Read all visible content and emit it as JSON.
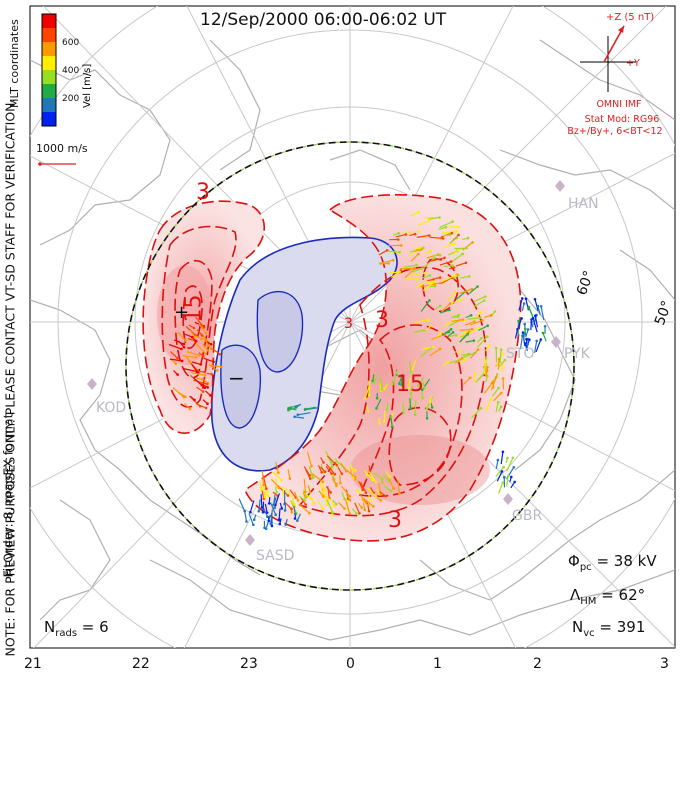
{
  "title": "12/Sep/2000 06:00-06:02 UT",
  "side_text": {
    "line1": "NOTE: FOR PREVIEW PURPOSES ONLY. PLEASE CONTACT VT-SD STAFF FOR VERIFICATION.",
    "line2": "FitOrder: 8, mapEX format"
  },
  "colorbar": {
    "label": "Vel [m/s]",
    "ticks": [
      "600",
      "400",
      "200"
    ],
    "colors": [
      "#0022ee",
      "#2277bb",
      "#22aa44",
      "#99dd22",
      "#ffee00",
      "#ff9900",
      "#ff4400",
      "#ee0000"
    ]
  },
  "coordinates_label": "MLT coordinates",
  "scale_label": "1000 m/s",
  "imf": {
    "z_label": "+Z (5 nT)",
    "y_label": "+Y",
    "source": "OMNI IMF",
    "stat_mod": "Stat Mod: RG96",
    "condition": "Bz+/By+, 6<BT<12"
  },
  "stats": {
    "phi_pc": "38 kV",
    "lambda_hm": "62°",
    "n_vc": "391",
    "n_rads": "6"
  },
  "mlt_hours": [
    "21",
    "22",
    "23",
    "0",
    "1",
    "2",
    "3"
  ],
  "latitude_labels": [
    "60°",
    "50°"
  ],
  "stations": [
    "HAN",
    "PYK",
    "KOD",
    "SASD",
    "GBR",
    "STO"
  ],
  "contour_labels": [
    "3",
    "15",
    "3",
    "15",
    "3",
    "3"
  ],
  "extrema": [
    "+",
    "−"
  ]
}
